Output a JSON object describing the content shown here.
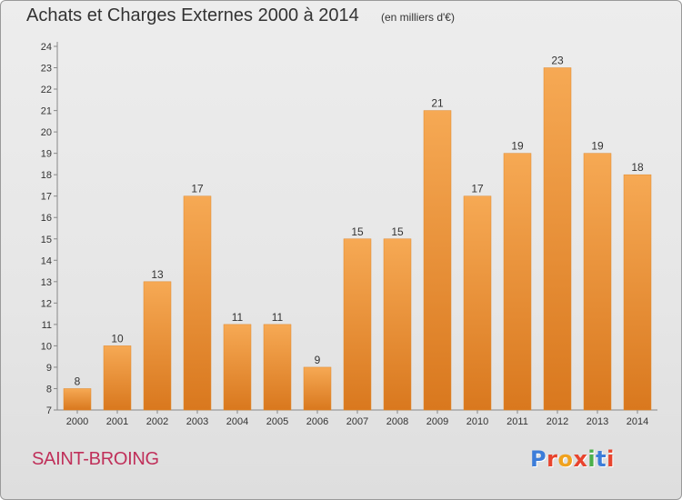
{
  "header": {
    "title": "Achats et Charges Externes 2000 à 2014",
    "subtitle": "(en milliers d'€)"
  },
  "footer": {
    "commune": "SAINT-BROING",
    "logo_text": "Proxiti",
    "logo_colors": [
      "#3c7dd9",
      "#e8442e",
      "#f0a21e",
      "#e8442e",
      "#4bb04a",
      "#3c7dd9",
      "#e8442e"
    ]
  },
  "colors": {
    "bar_light": "#f6a954",
    "bar_dark": "#d9781e",
    "axis": "#888888",
    "grid": "#d0d0d0"
  },
  "chart_data": {
    "type": "bar",
    "title": "Achats et Charges Externes 2000 à 2014",
    "subtitle": "(en milliers d'€)",
    "categories": [
      "2000",
      "2001",
      "2002",
      "2003",
      "2004",
      "2005",
      "2006",
      "2007",
      "2008",
      "2009",
      "2010",
      "2011",
      "2012",
      "2013",
      "2014"
    ],
    "values": [
      8,
      10,
      13,
      17,
      11,
      11,
      9,
      15,
      15,
      21,
      17,
      19,
      23,
      19,
      18
    ],
    "ylim": [
      7,
      24
    ],
    "yticks": [
      7,
      8,
      9,
      10,
      11,
      12,
      13,
      14,
      15,
      16,
      17,
      18,
      19,
      20,
      21,
      22,
      23,
      24
    ],
    "grid": false,
    "legend": "none"
  }
}
